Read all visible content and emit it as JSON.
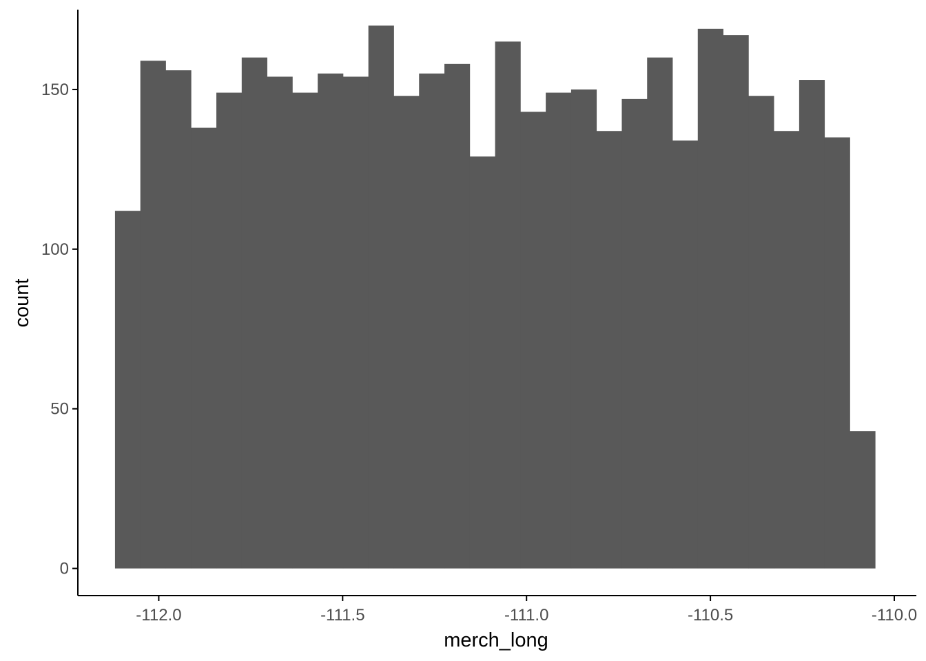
{
  "chart_data": {
    "type": "bar",
    "subtype": "histogram",
    "xlabel": "merch_long",
    "ylabel": "count",
    "xlim": [
      -112.22,
      -109.94
    ],
    "ylim": [
      -8.5,
      175
    ],
    "x_ticks": [
      -112.0,
      -111.5,
      -111.0,
      -110.5,
      -110.0
    ],
    "x_tick_labels": [
      "-112.0",
      "-111.5",
      "-111.0",
      "-110.5",
      "-110.0"
    ],
    "y_ticks": [
      0,
      50,
      100,
      150
    ],
    "y_tick_labels": [
      "0",
      "50",
      "100",
      "150"
    ],
    "bin_start": -112.119,
    "bin_width": 0.0689,
    "values": [
      112,
      159,
      156,
      138,
      149,
      160,
      154,
      149,
      155,
      154,
      170,
      148,
      155,
      158,
      129,
      165,
      143,
      149,
      150,
      137,
      147,
      160,
      134,
      169,
      167,
      148,
      137,
      153,
      135,
      43
    ],
    "bar_color": "#595959",
    "grid": false,
    "legend": "none"
  }
}
